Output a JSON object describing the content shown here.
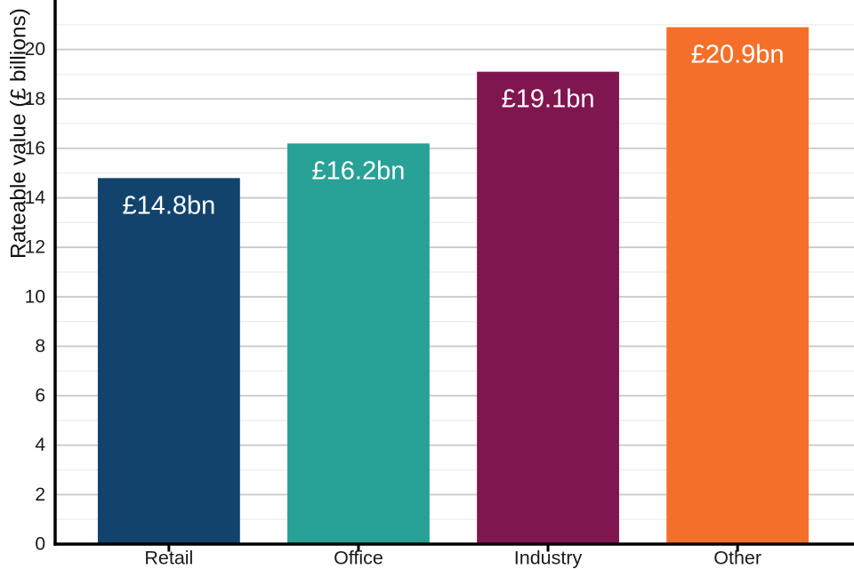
{
  "chart_data": {
    "type": "bar",
    "title": "",
    "xlabel": "",
    "ylabel": "Rateable value (£ billions)",
    "categories": [
      "Retail",
      "Office",
      "Industry",
      "Other"
    ],
    "values": [
      14.8,
      16.2,
      19.1,
      20.9
    ],
    "bar_labels": [
      "£14.8bn",
      "£16.2bn",
      "£19.1bn",
      "£20.9bn"
    ],
    "bar_colors": [
      "#12436D",
      "#28A197",
      "#801650",
      "#F4702A"
    ],
    "ylim": [
      0,
      22
    ],
    "yticks": [
      0,
      2,
      4,
      6,
      8,
      10,
      12,
      14,
      16,
      18,
      20
    ],
    "minor_grid_step": 1,
    "xlim": [
      -0.6,
      3.6
    ],
    "bar_width": 0.75,
    "grid": true,
    "legend": "none",
    "style": {
      "background": "#ffffff",
      "axis_color": "#000000",
      "major_grid_color": "#c9c9c9",
      "minor_grid_color": "#ebebeb",
      "tick_label_color": "#1a1a1a",
      "axis_title_color": "#111111",
      "bar_label_color": "#ffffff"
    }
  }
}
